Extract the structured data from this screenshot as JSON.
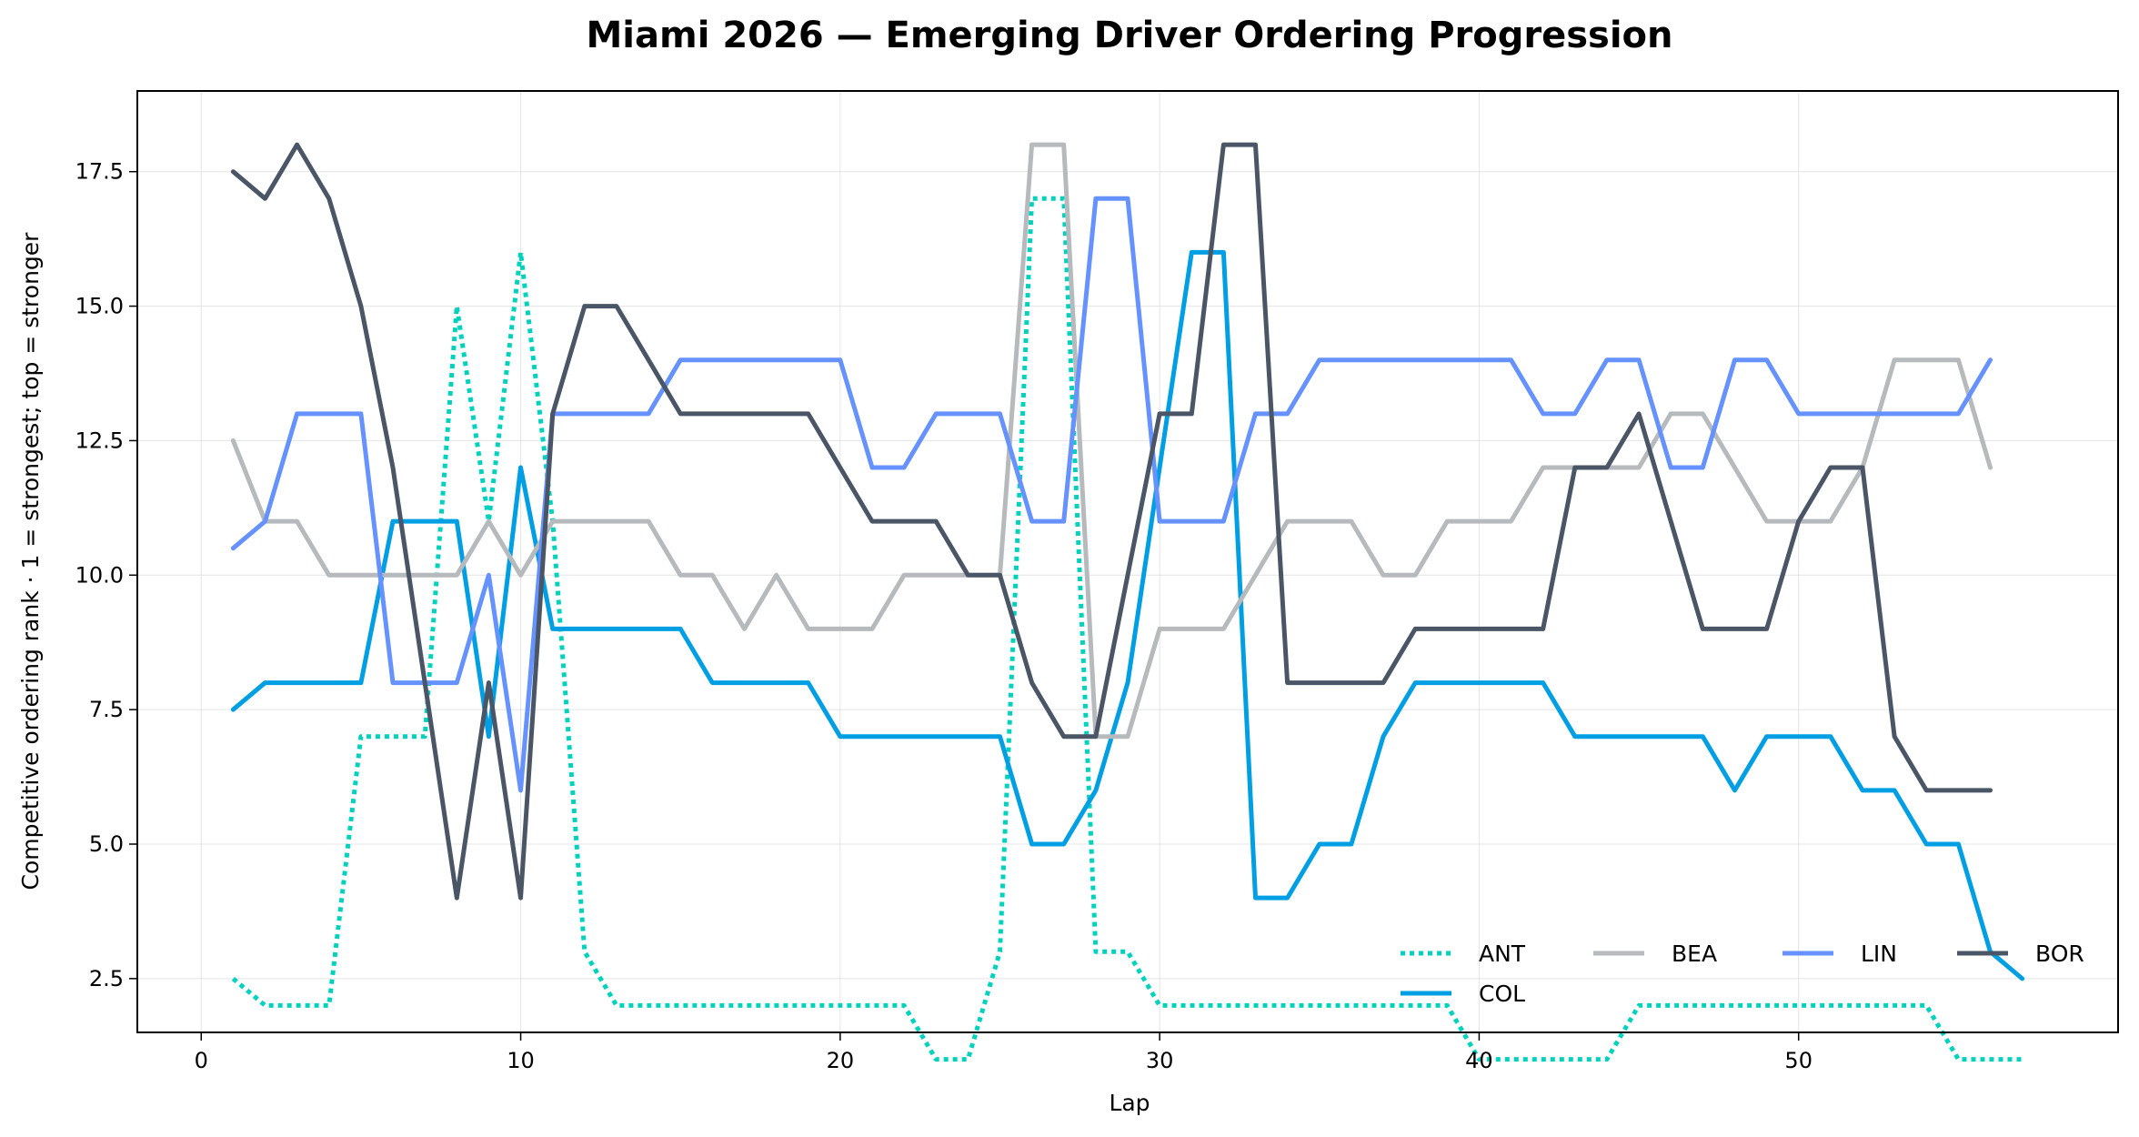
{
  "chart_data": {
    "type": "line",
    "title": "Miami 2026 — Emerging Driver Ordering Progression",
    "xlabel": "Lap",
    "ylabel": "Competitive ordering rank · 1 = strongest; top = stronger",
    "xlim": [
      -2,
      60
    ],
    "ylim": [
      19,
      1.5
    ],
    "y_inverted": true,
    "xticks": [
      "0",
      "10",
      "20",
      "30",
      "40",
      "50"
    ],
    "yticks": [
      "2.5",
      "5.0",
      "7.5",
      "10.0",
      "12.5",
      "15.0",
      "17.5"
    ],
    "grid": true,
    "legend_position": "lower-right",
    "series": [
      {
        "name": "ANT",
        "color": "#00d2be",
        "style": "dotted",
        "x": [
          1,
          2,
          3,
          4,
          5,
          6,
          7,
          8,
          9,
          10,
          11,
          12,
          13,
          14,
          15,
          16,
          17,
          18,
          19,
          20,
          21,
          22,
          23,
          24,
          25,
          26,
          27,
          28,
          29,
          30,
          31,
          32,
          33,
          34,
          35,
          36,
          37,
          38,
          39,
          40,
          41,
          42,
          43,
          44,
          45,
          46,
          47,
          48,
          49,
          50,
          51,
          52,
          53,
          54,
          55,
          56,
          57
        ],
        "y": [
          2.5,
          2,
          2,
          2,
          7,
          7,
          7,
          15,
          11,
          16,
          11,
          3,
          2,
          2,
          2,
          2,
          2,
          2,
          2,
          2,
          2,
          2,
          1,
          1,
          3,
          17,
          17,
          3,
          3,
          2,
          2,
          2,
          2,
          2,
          2,
          2,
          2,
          2,
          2,
          1,
          1,
          1,
          1,
          1,
          2,
          2,
          2,
          2,
          2,
          2,
          2,
          2,
          2,
          2,
          1,
          1,
          1
        ]
      },
      {
        "name": "COL",
        "color": "#009fe3",
        "style": "solid",
        "x": [
          1,
          2,
          3,
          4,
          5,
          6,
          7,
          8,
          9,
          10,
          11,
          12,
          13,
          14,
          15,
          16,
          17,
          18,
          19,
          20,
          21,
          22,
          23,
          24,
          25,
          26,
          27,
          28,
          29,
          30,
          31,
          32,
          33,
          34,
          35,
          36,
          37,
          38,
          39,
          40,
          41,
          42,
          43,
          44,
          45,
          46,
          47,
          48,
          49,
          50,
          51,
          52,
          53,
          54,
          55,
          56,
          57
        ],
        "y": [
          7.5,
          8,
          8,
          8,
          8,
          11,
          11,
          11,
          7,
          12,
          9,
          9,
          9,
          9,
          9,
          8,
          8,
          8,
          8,
          7,
          7,
          7,
          7,
          7,
          7,
          5,
          5,
          6,
          8,
          12,
          16,
          16,
          4,
          4,
          5,
          5,
          7,
          8,
          8,
          8,
          8,
          8,
          7,
          7,
          7,
          7,
          7,
          6,
          7,
          7,
          7,
          6,
          6,
          5,
          5,
          3,
          2.5
        ]
      },
      {
        "name": "BEA",
        "color": "#b6babd",
        "style": "solid",
        "x": [
          1,
          2,
          3,
          4,
          5,
          6,
          7,
          8,
          9,
          10,
          11,
          12,
          13,
          14,
          15,
          16,
          17,
          18,
          19,
          20,
          21,
          22,
          23,
          24,
          25,
          26,
          27,
          28,
          29,
          30,
          31,
          32,
          33,
          34,
          35,
          36,
          37,
          38,
          39,
          40,
          41,
          42,
          43,
          44,
          45,
          46,
          47,
          48,
          49,
          50,
          51,
          52,
          53,
          54,
          55,
          56
        ],
        "y": [
          12.5,
          11,
          11,
          10,
          10,
          10,
          10,
          10,
          11,
          10,
          11,
          11,
          11,
          11,
          10,
          10,
          9,
          10,
          9,
          9,
          9,
          10,
          10,
          10,
          10,
          18,
          18,
          7,
          7,
          9,
          9,
          9,
          10,
          11,
          11,
          11,
          10,
          10,
          11,
          11,
          11,
          12,
          12,
          12,
          12,
          13,
          13,
          12,
          11,
          11,
          11,
          12,
          14,
          14,
          14,
          12
        ]
      },
      {
        "name": "LIN",
        "color": "#6692ff",
        "style": "solid",
        "x": [
          1,
          2,
          3,
          4,
          5,
          6,
          7,
          8,
          9,
          10,
          11,
          12,
          13,
          14,
          15,
          16,
          17,
          18,
          19,
          20,
          21,
          22,
          23,
          24,
          25,
          26,
          27,
          28,
          29,
          30,
          31,
          32,
          33,
          34,
          35,
          36,
          37,
          38,
          39,
          40,
          41,
          42,
          43,
          44,
          45,
          46,
          47,
          48,
          49,
          50,
          51,
          52,
          53,
          54,
          55,
          56
        ],
        "y": [
          10.5,
          11,
          13,
          13,
          13,
          8,
          8,
          8,
          10,
          6,
          13,
          13,
          13,
          13,
          14,
          14,
          14,
          14,
          14,
          14,
          12,
          12,
          13,
          13,
          13,
          11,
          11,
          17,
          17,
          11,
          11,
          11,
          13,
          13,
          14,
          14,
          14,
          14,
          14,
          14,
          14,
          13,
          13,
          14,
          14,
          12,
          12,
          14,
          14,
          13,
          13,
          13,
          13,
          13,
          13,
          14
        ]
      },
      {
        "name": "BOR",
        "color": "#4a5566",
        "style": "solid",
        "x": [
          1,
          2,
          3,
          4,
          5,
          6,
          7,
          8,
          9,
          10,
          11,
          12,
          13,
          14,
          15,
          16,
          17,
          18,
          19,
          20,
          21,
          22,
          23,
          24,
          25,
          26,
          27,
          28,
          29,
          30,
          31,
          32,
          33,
          34,
          35,
          36,
          37,
          38,
          39,
          40,
          41,
          42,
          43,
          44,
          45,
          46,
          47,
          48,
          49,
          50,
          51,
          52,
          53,
          54,
          55,
          56
        ],
        "y": [
          17.5,
          17,
          18,
          17,
          15,
          12,
          8,
          4,
          8,
          4,
          13,
          15,
          15,
          14,
          13,
          13,
          13,
          13,
          13,
          12,
          11,
          11,
          11,
          10,
          10,
          8,
          7,
          7,
          10,
          13,
          13,
          18,
          18,
          8,
          8,
          8,
          8,
          9,
          9,
          9,
          9,
          9,
          12,
          12,
          13,
          11,
          9,
          9,
          9,
          11,
          12,
          12,
          7,
          6,
          6,
          6
        ]
      }
    ]
  }
}
